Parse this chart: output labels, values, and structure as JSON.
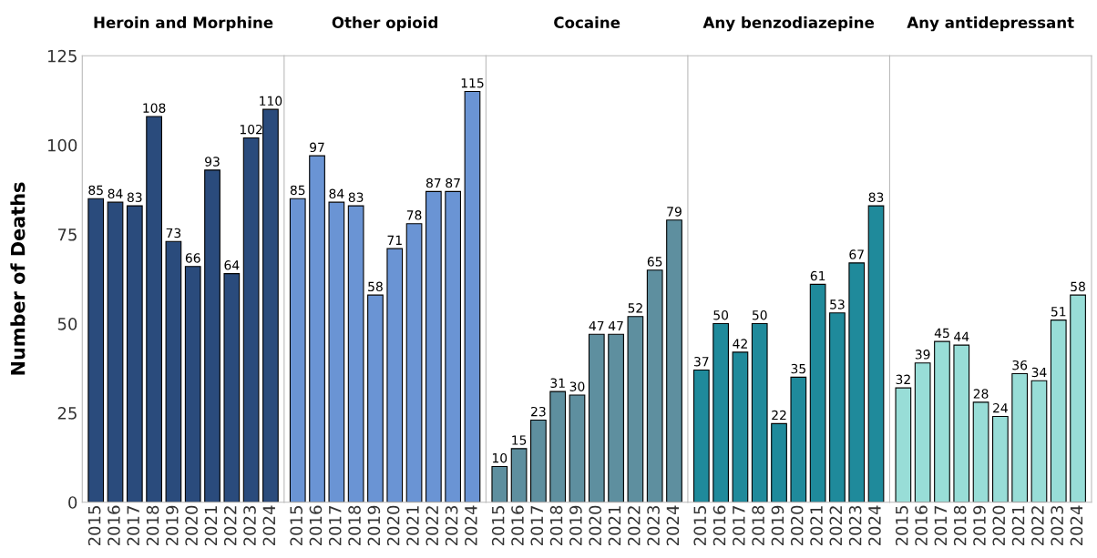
{
  "chart_data": [
    {
      "type": "bar",
      "title": "Heroin and Morphine",
      "ylabel": "Number of Deaths",
      "categories": [
        "2015",
        "2016",
        "2017",
        "2018",
        "2019",
        "2020",
        "2021",
        "2022",
        "2023",
        "2024"
      ],
      "values": [
        85,
        84,
        83,
        108,
        73,
        66,
        93,
        64,
        102,
        110
      ],
      "color": "#2a4b7c",
      "ylim": [
        0,
        125
      ],
      "yticks": [
        0,
        25,
        50,
        75,
        100,
        125
      ],
      "data_labels": true,
      "grid": false,
      "legend": false
    },
    {
      "type": "bar",
      "title": "Other opioid",
      "categories": [
        "2015",
        "2016",
        "2017",
        "2018",
        "2019",
        "2020",
        "2021",
        "2022",
        "2023",
        "2024"
      ],
      "values": [
        85,
        97,
        84,
        83,
        58,
        71,
        78,
        87,
        87,
        115
      ],
      "color": "#6a94d4",
      "ylim": [
        0,
        125
      ],
      "tick_labels": "x",
      "data_labels": true,
      "grid": false,
      "legend": false
    },
    {
      "type": "bar",
      "title": "Cocaine",
      "categories": [
        "2015",
        "2016",
        "2017",
        "2018",
        "2019",
        "2020",
        "2021",
        "2022",
        "2023",
        "2024"
      ],
      "values": [
        10,
        15,
        23,
        31,
        30,
        47,
        47,
        52,
        65,
        79
      ],
      "color": "#5e8f9f",
      "ylim": [
        0,
        125
      ],
      "tick_labels": "x",
      "data_labels": true,
      "grid": false,
      "legend": false
    },
    {
      "type": "bar",
      "title": "Any benzodiazepine",
      "categories": [
        "2015",
        "2016",
        "2017",
        "2018",
        "2019",
        "2020",
        "2021",
        "2022",
        "2023",
        "2024"
      ],
      "values": [
        37,
        50,
        42,
        50,
        22,
        35,
        61,
        53,
        67,
        83
      ],
      "color": "#1f8a9b",
      "ylim": [
        0,
        125
      ],
      "tick_labels": "x",
      "data_labels": true,
      "grid": false,
      "legend": false
    },
    {
      "type": "bar",
      "title": "Any antidepressant",
      "categories": [
        "2015",
        "2016",
        "2017",
        "2018",
        "2019",
        "2020",
        "2021",
        "2022",
        "2023",
        "2024"
      ],
      "values": [
        32,
        39,
        45,
        44,
        28,
        24,
        36,
        34,
        51,
        58
      ],
      "color": "#98ddd7",
      "ylim": [
        0,
        125
      ],
      "tick_labels": "x",
      "data_labels": true,
      "grid": false,
      "legend": false
    }
  ]
}
